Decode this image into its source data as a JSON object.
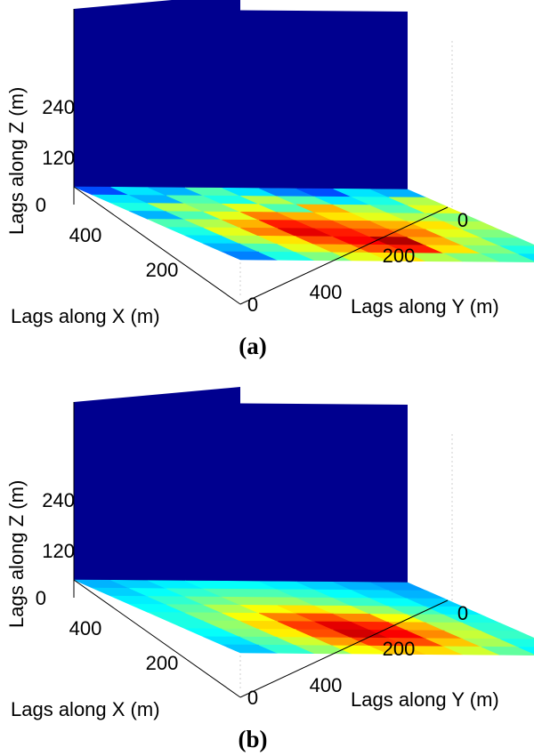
{
  "chart_data": [
    {
      "type": "heatmap",
      "panel_label": "(a)",
      "xlabel": "Lags along X (m)",
      "ylabel": "Lags along Y (m)",
      "zlabel": "Lags along Z (m)",
      "x_ticks": [
        "0",
        "200",
        "400"
      ],
      "y_ticks": [
        "0",
        "200",
        "400"
      ],
      "z_ticks": [
        "0",
        "120",
        "240"
      ],
      "colormap": "jet",
      "colors": {
        "low": "#00008f",
        "high": "#800000",
        "wall": "#00008f"
      },
      "floor_values": [
        [
          0.2,
          0.35,
          0.3,
          0.45,
          0.35,
          0.25,
          0.2,
          0.35,
          0.3
        ],
        [
          0.35,
          0.3,
          0.45,
          0.4,
          0.55,
          0.45,
          0.35,
          0.4,
          0.55
        ],
        [
          0.4,
          0.55,
          0.5,
          0.6,
          0.45,
          0.7,
          0.55,
          0.45,
          0.6
        ],
        [
          0.3,
          0.45,
          0.6,
          0.75,
          0.7,
          0.65,
          0.6,
          0.55,
          0.5
        ],
        [
          0.45,
          0.55,
          0.7,
          0.85,
          0.8,
          0.75,
          0.7,
          0.65,
          0.55
        ],
        [
          0.4,
          0.6,
          0.75,
          0.9,
          0.85,
          0.8,
          0.75,
          0.6,
          0.5
        ],
        [
          0.35,
          0.55,
          0.65,
          0.8,
          0.88,
          0.95,
          0.7,
          0.55,
          0.45
        ],
        [
          0.3,
          0.45,
          0.6,
          0.7,
          0.8,
          0.85,
          0.65,
          0.5,
          0.4
        ],
        [
          0.25,
          0.4,
          0.5,
          0.6,
          0.65,
          0.55,
          0.5,
          0.45,
          0.35
        ]
      ]
    },
    {
      "type": "heatmap",
      "panel_label": "(b)",
      "xlabel": "Lags along X (m)",
      "ylabel": "Lags along Y (m)",
      "zlabel": "Lags along Z (m)",
      "x_ticks": [
        "0",
        "200",
        "400"
      ],
      "y_ticks": [
        "0",
        "200",
        "400"
      ],
      "z_ticks": [
        "0",
        "120",
        "240"
      ],
      "colormap": "jet",
      "colors": {
        "low": "#00008f",
        "high": "#800000",
        "wall": "#00008f"
      },
      "floor_values": [
        [
          0.3,
          0.33,
          0.36,
          0.38,
          0.38,
          0.36,
          0.33,
          0.3,
          0.28
        ],
        [
          0.33,
          0.38,
          0.42,
          0.45,
          0.45,
          0.42,
          0.38,
          0.34,
          0.3
        ],
        [
          0.36,
          0.42,
          0.48,
          0.52,
          0.52,
          0.48,
          0.43,
          0.38,
          0.33
        ],
        [
          0.38,
          0.46,
          0.55,
          0.62,
          0.65,
          0.6,
          0.52,
          0.44,
          0.36
        ],
        [
          0.4,
          0.5,
          0.62,
          0.75,
          0.8,
          0.74,
          0.62,
          0.5,
          0.4
        ],
        [
          0.4,
          0.52,
          0.66,
          0.82,
          0.9,
          0.84,
          0.7,
          0.55,
          0.42
        ],
        [
          0.38,
          0.5,
          0.64,
          0.8,
          0.92,
          0.88,
          0.74,
          0.57,
          0.43
        ],
        [
          0.35,
          0.46,
          0.58,
          0.72,
          0.82,
          0.8,
          0.68,
          0.54,
          0.4
        ],
        [
          0.32,
          0.42,
          0.52,
          0.62,
          0.68,
          0.66,
          0.58,
          0.47,
          0.37
        ]
      ]
    }
  ]
}
